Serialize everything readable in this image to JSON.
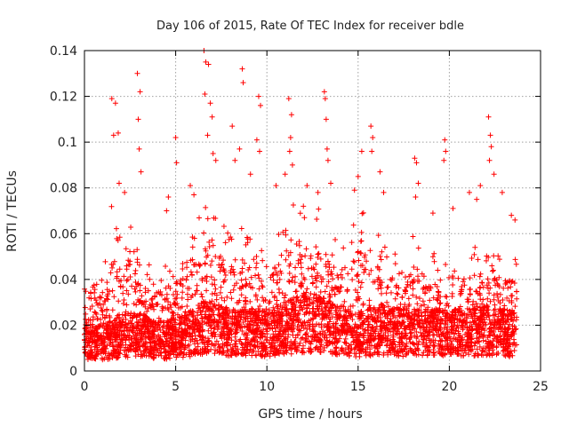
{
  "chart_data": {
    "type": "scatter",
    "title": "Day 106 of 2015, Rate Of TEC Index for receiver bdle",
    "xlabel": "GPS time / hours",
    "ylabel": "ROTI / TECUs",
    "xlim": [
      0,
      25
    ],
    "ylim": [
      0,
      0.14
    ],
    "xticks": [
      0,
      5,
      10,
      15,
      20,
      25
    ],
    "yticks": [
      0,
      0.02,
      0.04,
      0.06,
      0.08,
      0.1,
      0.12,
      0.14
    ],
    "xtick_labels": [
      "0",
      "5",
      "10",
      "15",
      "20",
      "25"
    ],
    "ytick_labels": [
      "0",
      "0.02",
      "0.04",
      "0.06",
      "0.08",
      "0.1",
      "0.12",
      "0.14"
    ],
    "grid": true,
    "legend": "none",
    "marker": "+",
    "color": "#ff0000",
    "data_range_x": [
      0,
      23.7
    ],
    "envelope": {
      "x": [
        0,
        0.5,
        1,
        1.5,
        2,
        2.5,
        3,
        3.5,
        4,
        4.5,
        5,
        5.5,
        6,
        6.5,
        7,
        7.5,
        8,
        8.5,
        9,
        9.5,
        10,
        10.5,
        11,
        11.5,
        12,
        12.5,
        13,
        13.5,
        14,
        14.5,
        15,
        15.5,
        16,
        16.5,
        17,
        17.5,
        18,
        18.5,
        19,
        19.5,
        20,
        20.5,
        21,
        21.5,
        22,
        22.5,
        23,
        23.7
      ],
      "base": [
        0.012,
        0.012,
        0.012,
        0.013,
        0.014,
        0.015,
        0.015,
        0.014,
        0.013,
        0.013,
        0.014,
        0.015,
        0.016,
        0.018,
        0.018,
        0.017,
        0.016,
        0.016,
        0.016,
        0.016,
        0.015,
        0.016,
        0.018,
        0.019,
        0.02,
        0.02,
        0.019,
        0.018,
        0.017,
        0.016,
        0.015,
        0.016,
        0.017,
        0.017,
        0.016,
        0.016,
        0.016,
        0.016,
        0.016,
        0.016,
        0.016,
        0.016,
        0.016,
        0.016,
        0.017,
        0.017,
        0.016,
        0.015
      ],
      "upper": [
        0.035,
        0.05,
        0.04,
        0.07,
        0.06,
        0.075,
        0.05,
        0.045,
        0.045,
        0.05,
        0.055,
        0.05,
        0.06,
        0.07,
        0.075,
        0.065,
        0.06,
        0.065,
        0.06,
        0.055,
        0.05,
        0.06,
        0.07,
        0.07,
        0.075,
        0.065,
        0.07,
        0.06,
        0.055,
        0.06,
        0.07,
        0.065,
        0.06,
        0.055,
        0.05,
        0.05,
        0.06,
        0.055,
        0.05,
        0.05,
        0.055,
        0.05,
        0.05,
        0.055,
        0.06,
        0.055,
        0.05,
        0.05
      ]
    },
    "spikes": [
      [
        1.5,
        0.119
      ],
      [
        1.7,
        0.117
      ],
      [
        1.6,
        0.103
      ],
      [
        1.85,
        0.104
      ],
      [
        1.9,
        0.082
      ],
      [
        2.9,
        0.13
      ],
      [
        3.05,
        0.122
      ],
      [
        2.95,
        0.11
      ],
      [
        3.0,
        0.097
      ],
      [
        3.1,
        0.087
      ],
      [
        2.2,
        0.078
      ],
      [
        4.5,
        0.07
      ],
      [
        4.6,
        0.076
      ],
      [
        5.0,
        0.102
      ],
      [
        5.05,
        0.091
      ],
      [
        5.8,
        0.081
      ],
      [
        6.0,
        0.077
      ],
      [
        6.55,
        0.14
      ],
      [
        6.65,
        0.135
      ],
      [
        6.8,
        0.134
      ],
      [
        6.6,
        0.121
      ],
      [
        6.9,
        0.117
      ],
      [
        7.0,
        0.111
      ],
      [
        6.75,
        0.103
      ],
      [
        7.05,
        0.095
      ],
      [
        7.2,
        0.092
      ],
      [
        8.1,
        0.107
      ],
      [
        8.25,
        0.092
      ],
      [
        8.5,
        0.097
      ],
      [
        8.65,
        0.132
      ],
      [
        8.7,
        0.126
      ],
      [
        9.55,
        0.12
      ],
      [
        9.65,
        0.116
      ],
      [
        9.45,
        0.101
      ],
      [
        9.6,
        0.096
      ],
      [
        9.1,
        0.086
      ],
      [
        10.5,
        0.081
      ],
      [
        11.0,
        0.086
      ],
      [
        11.2,
        0.119
      ],
      [
        11.35,
        0.112
      ],
      [
        11.3,
        0.102
      ],
      [
        11.25,
        0.096
      ],
      [
        11.4,
        0.09
      ],
      [
        12.0,
        0.072
      ],
      [
        12.2,
        0.081
      ],
      [
        12.8,
        0.078
      ],
      [
        13.15,
        0.122
      ],
      [
        13.2,
        0.119
      ],
      [
        13.25,
        0.11
      ],
      [
        13.3,
        0.097
      ],
      [
        13.35,
        0.092
      ],
      [
        13.5,
        0.082
      ],
      [
        14.8,
        0.079
      ],
      [
        15.0,
        0.085
      ],
      [
        15.2,
        0.096
      ],
      [
        15.7,
        0.107
      ],
      [
        15.8,
        0.102
      ],
      [
        15.75,
        0.096
      ],
      [
        16.2,
        0.087
      ],
      [
        16.4,
        0.078
      ],
      [
        18.1,
        0.093
      ],
      [
        18.2,
        0.091
      ],
      [
        18.3,
        0.082
      ],
      [
        18.15,
        0.076
      ],
      [
        19.1,
        0.069
      ],
      [
        19.75,
        0.101
      ],
      [
        19.8,
        0.096
      ],
      [
        19.7,
        0.092
      ],
      [
        20.2,
        0.071
      ],
      [
        21.1,
        0.078
      ],
      [
        21.7,
        0.081
      ],
      [
        21.5,
        0.075
      ],
      [
        22.15,
        0.111
      ],
      [
        22.25,
        0.103
      ],
      [
        22.3,
        0.098
      ],
      [
        22.2,
        0.092
      ],
      [
        22.45,
        0.086
      ],
      [
        22.9,
        0.078
      ],
      [
        23.4,
        0.068
      ],
      [
        23.6,
        0.066
      ]
    ]
  }
}
